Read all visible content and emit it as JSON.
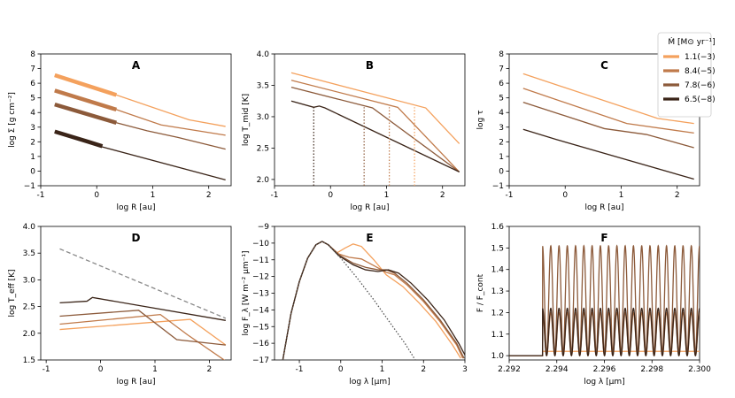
{
  "colors": {
    "s1": "#F4A15D",
    "s2": "#C07A4A",
    "s3": "#8C5A3A",
    "s4": "#3A2418",
    "dashed": "#888888",
    "dotted": "#555555"
  },
  "legend": {
    "title": "Ṁ [M⊙ yr⁻¹]",
    "entries": [
      "1.1(−3)",
      "8.4(−5)",
      "7.8(−6)",
      "6.5(−8)"
    ]
  },
  "chart_data": [
    {
      "id": "A",
      "type": "line",
      "title": "A",
      "xlabel": "log R [au]",
      "ylabel": "log Σ  [g cm⁻²]",
      "xlim": [
        -1,
        2.4
      ],
      "ylim": [
        -1,
        8
      ],
      "xticks": [
        -1,
        0,
        1,
        2
      ],
      "yticks": [
        -1,
        0,
        1,
        2,
        3,
        4,
        5,
        6,
        7,
        8
      ],
      "series": [
        {
          "color_key": "s1",
          "points": [
            [
              -0.75,
              6.55
            ],
            [
              0.35,
              5.2
            ],
            [
              1.65,
              3.5
            ],
            [
              2.3,
              3.05
            ]
          ],
          "thick": [
            [
              -0.75,
              6.55
            ],
            [
              0.35,
              5.2
            ]
          ]
        },
        {
          "color_key": "s2",
          "points": [
            [
              -0.75,
              5.5
            ],
            [
              0.35,
              4.2
            ],
            [
              1.15,
              3.15
            ],
            [
              2.3,
              2.45
            ]
          ],
          "thick": [
            [
              -0.75,
              5.5
            ],
            [
              0.35,
              4.2
            ]
          ]
        },
        {
          "color_key": "s3",
          "points": [
            [
              -0.75,
              4.55
            ],
            [
              0.35,
              3.3
            ],
            [
              0.9,
              2.75
            ],
            [
              1.45,
              2.3
            ],
            [
              2.3,
              1.5
            ]
          ],
          "thick": [
            [
              -0.75,
              4.55
            ],
            [
              0.35,
              3.3
            ]
          ]
        },
        {
          "color_key": "s4",
          "points": [
            [
              -0.75,
              2.7
            ],
            [
              -0.15,
              2.0
            ],
            [
              0.1,
              1.65
            ],
            [
              2.3,
              -0.6
            ]
          ],
          "thick": [
            [
              -0.75,
              2.7
            ],
            [
              -0.15,
              2.0
            ],
            [
              0.1,
              1.7
            ]
          ]
        }
      ]
    },
    {
      "id": "B",
      "type": "line",
      "title": "B",
      "xlabel": "log R [au]",
      "ylabel": "log T_mid [K]",
      "xlim": [
        -1,
        2.4
      ],
      "ylim": [
        1.9,
        4.0
      ],
      "xticks": [
        -1,
        0,
        1,
        2
      ],
      "yticks": [
        2.0,
        2.5,
        3.0,
        3.5,
        4.0
      ],
      "series": [
        {
          "color_key": "s1",
          "points": [
            [
              -0.7,
              3.7
            ],
            [
              1.7,
              3.14
            ],
            [
              2.3,
              2.57
            ]
          ]
        },
        {
          "color_key": "s2",
          "points": [
            [
              -0.7,
              3.58
            ],
            [
              1.2,
              3.15
            ],
            [
              2.3,
              2.12
            ]
          ]
        },
        {
          "color_key": "s3",
          "points": [
            [
              -0.7,
              3.47
            ],
            [
              0.75,
              3.14
            ],
            [
              2.3,
              2.12
            ]
          ]
        },
        {
          "color_key": "s4",
          "points": [
            [
              -0.7,
              3.25
            ],
            [
              -0.3,
              3.15
            ],
            [
              -0.2,
              3.17
            ],
            [
              -0.1,
              3.14
            ],
            [
              2.3,
              2.12
            ]
          ]
        }
      ],
      "vlines": [
        {
          "color_key": "s4",
          "x": -0.3
        },
        {
          "color_key": "s3",
          "x": 0.6
        },
        {
          "color_key": "s2",
          "x": 1.05
        },
        {
          "color_key": "s1",
          "x": 1.5
        }
      ]
    },
    {
      "id": "C",
      "type": "line",
      "title": "C",
      "xlabel": "log R [au]",
      "ylabel": "log τ",
      "xlim": [
        -1,
        2.4
      ],
      "ylim": [
        -1,
        8
      ],
      "xticks": [
        -1,
        0,
        1,
        2
      ],
      "yticks": [
        -1,
        0,
        1,
        2,
        3,
        4,
        5,
        6,
        7,
        8
      ],
      "series": [
        {
          "color_key": "s1",
          "points": [
            [
              -0.75,
              6.65
            ],
            [
              1.65,
              3.6
            ],
            [
              2.3,
              3.25
            ]
          ]
        },
        {
          "color_key": "s2",
          "points": [
            [
              -0.75,
              5.65
            ],
            [
              1.1,
              3.25
            ],
            [
              2.3,
              2.6
            ]
          ]
        },
        {
          "color_key": "s3",
          "points": [
            [
              -0.75,
              4.7
            ],
            [
              0.7,
              2.9
            ],
            [
              1.45,
              2.5
            ],
            [
              2.3,
              1.6
            ]
          ]
        },
        {
          "color_key": "s4",
          "points": [
            [
              -0.75,
              2.85
            ],
            [
              -0.15,
              2.15
            ],
            [
              2.3,
              -0.55
            ]
          ]
        }
      ]
    },
    {
      "id": "D",
      "type": "line",
      "title": "D",
      "xlabel": "log R [au]",
      "ylabel": "log T_eff [K]",
      "xlim": [
        -1.1,
        2.4
      ],
      "ylim": [
        1.5,
        4.0
      ],
      "xticks": [
        -1,
        0,
        1,
        2
      ],
      "yticks": [
        1.5,
        2.0,
        2.5,
        3.0,
        3.5,
        4.0
      ],
      "series": [
        {
          "color_key": "s1",
          "points": [
            [
              -0.75,
              2.07
            ],
            [
              1.65,
              2.26
            ],
            [
              2.3,
              1.78
            ]
          ]
        },
        {
          "color_key": "s2",
          "points": [
            [
              -0.75,
              2.17
            ],
            [
              1.1,
              2.35
            ],
            [
              1.6,
              1.97
            ],
            [
              2.3,
              1.48
            ]
          ]
        },
        {
          "color_key": "s3",
          "points": [
            [
              -0.75,
              2.32
            ],
            [
              0.7,
              2.43
            ],
            [
              1.4,
              1.88
            ],
            [
              2.3,
              1.78
            ]
          ]
        },
        {
          "color_key": "s4",
          "points": [
            [
              -0.75,
              2.57
            ],
            [
              -0.25,
              2.6
            ],
            [
              -0.15,
              2.67
            ],
            [
              2.3,
              2.24
            ]
          ]
        },
        {
          "color_key": "dashed",
          "dash": "5,3",
          "points": [
            [
              -0.75,
              3.58
            ],
            [
              2.3,
              2.28
            ]
          ]
        }
      ]
    },
    {
      "id": "E",
      "type": "line",
      "title": "E",
      "xlabel": "log λ [μm]",
      "ylabel": "log F_λ [W m⁻² μm⁻¹]",
      "xlim": [
        -1.6,
        3.0
      ],
      "ylim": [
        -17,
        -9
      ],
      "xticks": [
        -1,
        0,
        1,
        2,
        3
      ],
      "yticks": [
        -17,
        -16,
        -15,
        -14,
        -13,
        -12,
        -11,
        -10,
        -9
      ],
      "series": [
        {
          "color_key": "s1",
          "points": [
            [
              -1.4,
              -17
            ],
            [
              -1.2,
              -14.2
            ],
            [
              -1.0,
              -12.3
            ],
            [
              -0.8,
              -10.9
            ],
            [
              -0.6,
              -10.1
            ],
            [
              -0.45,
              -9.9
            ],
            [
              -0.3,
              -10.1
            ],
            [
              -0.1,
              -10.6
            ],
            [
              0.1,
              -10.3
            ],
            [
              0.3,
              -10.05
            ],
            [
              0.5,
              -10.2
            ],
            [
              0.8,
              -11.0
            ],
            [
              1.1,
              -11.9
            ],
            [
              1.5,
              -12.6
            ],
            [
              1.9,
              -13.6
            ],
            [
              2.3,
              -14.7
            ],
            [
              2.7,
              -16.1
            ],
            [
              2.9,
              -16.9
            ]
          ]
        },
        {
          "color_key": "s2",
          "points": [
            [
              -1.4,
              -17
            ],
            [
              -1.2,
              -14.2
            ],
            [
              -1.0,
              -12.3
            ],
            [
              -0.8,
              -10.9
            ],
            [
              -0.6,
              -10.1
            ],
            [
              -0.45,
              -9.9
            ],
            [
              -0.3,
              -10.1
            ],
            [
              -0.05,
              -10.65
            ],
            [
              0.2,
              -10.85
            ],
            [
              0.5,
              -10.95
            ],
            [
              0.8,
              -11.35
            ],
            [
              1.1,
              -11.75
            ],
            [
              1.3,
              -11.9
            ],
            [
              1.6,
              -12.5
            ],
            [
              2.0,
              -13.5
            ],
            [
              2.4,
              -14.7
            ],
            [
              2.8,
              -16.1
            ],
            [
              2.95,
              -16.9
            ]
          ]
        },
        {
          "color_key": "s3",
          "points": [
            [
              -1.4,
              -17
            ],
            [
              -1.2,
              -14.2
            ],
            [
              -1.0,
              -12.3
            ],
            [
              -0.8,
              -10.9
            ],
            [
              -0.6,
              -10.1
            ],
            [
              -0.45,
              -9.9
            ],
            [
              -0.3,
              -10.1
            ],
            [
              -0.05,
              -10.7
            ],
            [
              0.3,
              -11.2
            ],
            [
              0.6,
              -11.45
            ],
            [
              0.9,
              -11.6
            ],
            [
              1.1,
              -11.6
            ],
            [
              1.3,
              -11.8
            ],
            [
              1.6,
              -12.4
            ],
            [
              2.0,
              -13.4
            ],
            [
              2.4,
              -14.6
            ],
            [
              2.8,
              -16.0
            ],
            [
              2.98,
              -16.9
            ]
          ]
        },
        {
          "color_key": "s4",
          "points": [
            [
              -1.4,
              -17
            ],
            [
              -1.2,
              -14.2
            ],
            [
              -1.0,
              -12.3
            ],
            [
              -0.8,
              -10.9
            ],
            [
              -0.6,
              -10.1
            ],
            [
              -0.45,
              -9.9
            ],
            [
              -0.3,
              -10.1
            ],
            [
              -0.05,
              -10.75
            ],
            [
              0.3,
              -11.3
            ],
            [
              0.6,
              -11.6
            ],
            [
              0.9,
              -11.7
            ],
            [
              1.15,
              -11.6
            ],
            [
              1.4,
              -11.8
            ],
            [
              1.7,
              -12.4
            ],
            [
              2.1,
              -13.4
            ],
            [
              2.5,
              -14.6
            ],
            [
              2.85,
              -16.0
            ],
            [
              3.0,
              -16.7
            ]
          ]
        },
        {
          "color_key": "dotted",
          "dash": "1.5,2",
          "points": [
            [
              -1.4,
              -17
            ],
            [
              -1.2,
              -14.2
            ],
            [
              -1.0,
              -12.3
            ],
            [
              -0.8,
              -10.9
            ],
            [
              -0.6,
              -10.1
            ],
            [
              -0.45,
              -9.9
            ],
            [
              -0.3,
              -10.1
            ],
            [
              0.0,
              -10.9
            ],
            [
              0.4,
              -12.1
            ],
            [
              0.8,
              -13.4
            ],
            [
              1.2,
              -14.8
            ],
            [
              1.55,
              -16.0
            ],
            [
              1.8,
              -17
            ]
          ]
        }
      ]
    },
    {
      "id": "F",
      "type": "line",
      "title": "F",
      "xlabel": "log λ [μm]",
      "ylabel": "F / F_cont",
      "xlim": [
        2.292,
        2.3
      ],
      "ylim": [
        0.98,
        1.6
      ],
      "xticks": [
        2.292,
        2.294,
        2.296,
        2.298,
        2.3
      ],
      "yticks": [
        1.0,
        1.1,
        1.2,
        1.3,
        1.4,
        1.5,
        1.6
      ],
      "xtick_labels": [
        "2.292",
        "2.294",
        "2.296",
        "2.298",
        "2.300"
      ],
      "edge": 2.2934,
      "series": [
        {
          "color_key": "s1",
          "base": 1.02,
          "amp": 0.0,
          "mean": 1.02,
          "periods": 0
        },
        {
          "color_key": "s2",
          "base": 1.0,
          "amp": 0.1,
          "mean": 1.1,
          "periods": 19
        },
        {
          "color_key": "s3",
          "base": 1.0,
          "amp": 0.25,
          "mean": 1.26,
          "periods": 19
        },
        {
          "color_key": "s4",
          "base": 1.0,
          "amp": 0.11,
          "mean": 1.11,
          "periods": 19
        }
      ]
    }
  ]
}
